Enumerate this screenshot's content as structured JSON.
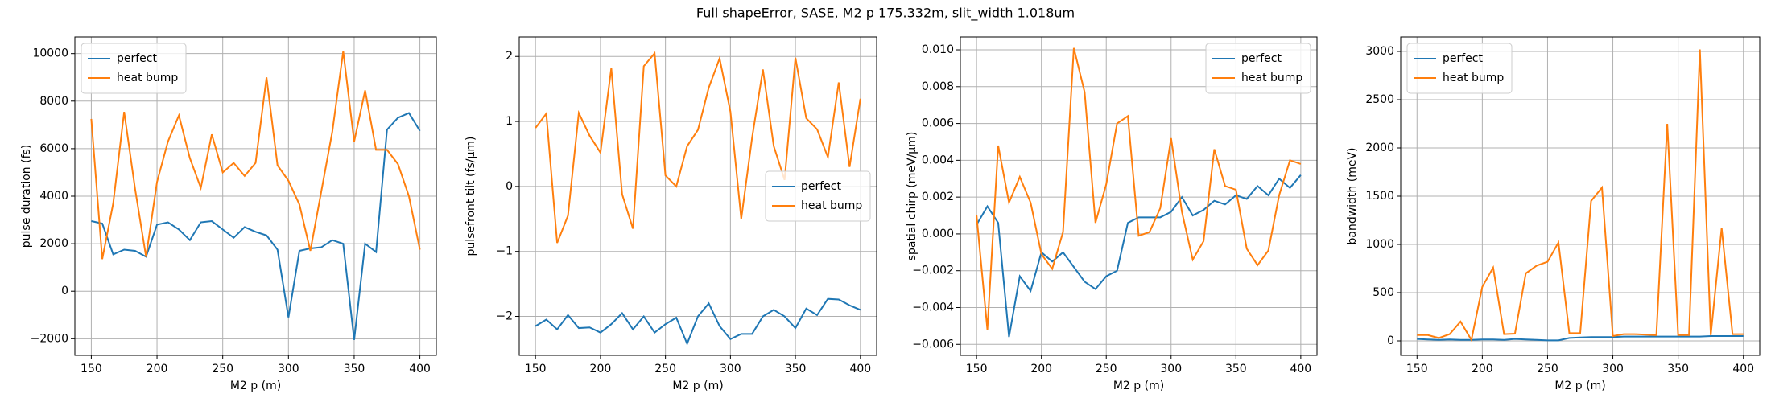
{
  "title": "Full shapeError, SASE, M2 p 175.332m, slit_width 1.018um",
  "chart_data": [
    {
      "type": "line",
      "xlabel": "M2 p (m)",
      "ylabel": "pulse duration (fs)",
      "legend": "upper left",
      "grid": true,
      "x": [
        150,
        158.33,
        166.67,
        175,
        183.33,
        191.67,
        200,
        208.33,
        216.67,
        225,
        233.33,
        241.67,
        250,
        258.33,
        266.67,
        275,
        283.33,
        291.67,
        300,
        308.33,
        316.67,
        325,
        333.33,
        341.67,
        350,
        358.33,
        366.67,
        375,
        383.33,
        391.67,
        400
      ],
      "xlim": [
        137.5,
        412.5
      ],
      "xticks": [
        150,
        200,
        250,
        300,
        350,
        400
      ],
      "ylim": [
        -2700,
        10700
      ],
      "yticks": [
        {
          "value": -2000,
          "label": "−2000"
        },
        0,
        2000,
        4000,
        6000,
        8000,
        10000
      ],
      "series": [
        {
          "name": "perfect",
          "color": "#1f77b4",
          "values": [
            2950,
            2850,
            1550,
            1750,
            1700,
            1450,
            2800,
            2900,
            2600,
            2150,
            2900,
            2950,
            2600,
            2250,
            2700,
            2500,
            2350,
            1750,
            -1100,
            1700,
            1800,
            1850,
            2150,
            2000,
            -2050,
            2000,
            1650,
            6800,
            7300,
            7500,
            6750
          ]
        },
        {
          "name": "heat bump",
          "color": "#ff7f0e",
          "values": [
            7250,
            1350,
            3700,
            7550,
            4300,
            1450,
            4600,
            6300,
            7400,
            5600,
            4350,
            6600,
            5000,
            5400,
            4850,
            5400,
            9000,
            5300,
            4650,
            3650,
            1700,
            4200,
            6700,
            10100,
            6300,
            8450,
            5950,
            5950,
            5350,
            4000,
            1750
          ]
        }
      ]
    },
    {
      "type": "line",
      "xlabel": "M2 p (m)",
      "ylabel": "pulsefront tilt (fs/μm)",
      "legend": "center right",
      "grid": true,
      "x": [
        150,
        158.33,
        166.67,
        175,
        183.33,
        191.67,
        200,
        208.33,
        216.67,
        225,
        233.33,
        241.67,
        250,
        258.33,
        266.67,
        275,
        283.33,
        291.67,
        300,
        308.33,
        316.67,
        325,
        333.33,
        341.67,
        350,
        358.33,
        366.67,
        375,
        383.33,
        391.67,
        400
      ],
      "xlim": [
        137.5,
        412.5
      ],
      "xticks": [
        150,
        200,
        250,
        300,
        350,
        400
      ],
      "ylim": [
        -2.6,
        2.3
      ],
      "yticks": [
        {
          "value": -2,
          "label": "−2"
        },
        {
          "value": -1,
          "label": "−1"
        },
        0,
        1,
        2
      ],
      "series": [
        {
          "name": "perfect",
          "color": "#1f77b4",
          "values": [
            -2.15,
            -2.05,
            -2.2,
            -1.98,
            -2.18,
            -2.17,
            -2.25,
            -2.12,
            -1.95,
            -2.2,
            -2.0,
            -2.25,
            -2.12,
            -2.02,
            -2.42,
            -2.0,
            -1.8,
            -2.15,
            -2.35,
            -2.27,
            -2.27,
            -2.0,
            -1.9,
            -2.0,
            -2.18,
            -1.88,
            -1.98,
            -1.73,
            -1.74,
            -1.83,
            -1.9
          ]
        },
        {
          "name": "heat bump",
          "color": "#ff7f0e",
          "values": [
            0.9,
            1.12,
            -0.87,
            -0.45,
            1.13,
            0.78,
            0.52,
            1.82,
            -0.12,
            -0.65,
            1.85,
            2.05,
            0.17,
            0.0,
            0.62,
            0.87,
            1.52,
            1.97,
            1.15,
            -0.5,
            0.75,
            1.8,
            0.62,
            0.1,
            1.98,
            1.05,
            0.88,
            0.45,
            1.6,
            0.3,
            1.35
          ]
        }
      ]
    },
    {
      "type": "line",
      "xlabel": "M2 p (m)",
      "ylabel": "spatial chirp (meV/μm)",
      "legend": "upper right",
      "grid": true,
      "x": [
        150,
        158.33,
        166.67,
        175,
        183.33,
        191.67,
        200,
        208.33,
        216.67,
        225,
        233.33,
        241.67,
        250,
        258.33,
        266.67,
        275,
        283.33,
        291.67,
        300,
        308.33,
        316.67,
        325,
        333.33,
        341.67,
        350,
        358.33,
        366.67,
        375,
        383.33,
        391.67,
        400
      ],
      "xlim": [
        137.5,
        412.5
      ],
      "xticks": [
        150,
        200,
        250,
        300,
        350,
        400
      ],
      "ylim": [
        -0.0066,
        0.0107
      ],
      "yticks": [
        {
          "value": -0.006,
          "label": "−0.006"
        },
        {
          "value": -0.004,
          "label": "−0.004"
        },
        {
          "value": -0.002,
          "label": "−0.002"
        },
        {
          "value": 0,
          "label": "0.000"
        },
        {
          "value": 0.002,
          "label": "0.002"
        },
        {
          "value": 0.004,
          "label": "0.004"
        },
        {
          "value": 0.006,
          "label": "0.006"
        },
        {
          "value": 0.008,
          "label": "0.008"
        },
        {
          "value": 0.01,
          "label": "0.010"
        }
      ],
      "series": [
        {
          "name": "perfect",
          "color": "#1f77b4",
          "values": [
            0.0005,
            0.0015,
            0.0006,
            -0.0056,
            -0.0023,
            -0.0031,
            -0.001,
            -0.0015,
            -0.001,
            -0.0018,
            -0.0026,
            -0.003,
            -0.0023,
            -0.002,
            0.0006,
            0.0009,
            0.0009,
            0.0009,
            0.0012,
            0.002,
            0.001,
            0.0013,
            0.0018,
            0.0016,
            0.0021,
            0.0019,
            0.0026,
            0.0021,
            0.003,
            0.0025,
            0.0032
          ]
        },
        {
          "name": "heat bump",
          "color": "#ff7f0e",
          "values": [
            0.001,
            -0.0052,
            0.0048,
            0.0017,
            0.0031,
            0.0017,
            -0.0011,
            -0.0019,
            0.0001,
            0.0101,
            0.0077,
            0.0006,
            0.0027,
            0.006,
            0.0064,
            -0.0001,
            0.0001,
            0.0014,
            0.0052,
            0.0012,
            -0.0014,
            -0.0004,
            0.0046,
            0.0026,
            0.0024,
            -0.0008,
            -0.0017,
            -0.0009,
            0.0021,
            0.004,
            0.0038
          ]
        }
      ]
    },
    {
      "type": "line",
      "xlabel": "M2 p (m)",
      "ylabel": "bandwidth (meV)",
      "legend": "upper left",
      "grid": true,
      "x": [
        150,
        158.33,
        166.67,
        175,
        183.33,
        191.67,
        200,
        208.33,
        216.67,
        225,
        233.33,
        241.67,
        250,
        258.33,
        266.67,
        275,
        283.33,
        291.67,
        300,
        308.33,
        316.67,
        325,
        333.33,
        341.67,
        350,
        358.33,
        366.67,
        375,
        383.33,
        391.67,
        400
      ],
      "xlim": [
        137.5,
        412.5
      ],
      "xticks": [
        150,
        200,
        250,
        300,
        350,
        400
      ],
      "ylim": [
        -150,
        3150
      ],
      "yticks": [
        0,
        500,
        1000,
        1500,
        2000,
        2500,
        3000
      ],
      "series": [
        {
          "name": "perfect",
          "color": "#1f77b4",
          "values": [
            20,
            15,
            10,
            15,
            10,
            10,
            15,
            15,
            10,
            20,
            15,
            10,
            5,
            5,
            30,
            35,
            40,
            40,
            40,
            45,
            45,
            45,
            45,
            45,
            45,
            45,
            45,
            50,
            50,
            50,
            50
          ]
        },
        {
          "name": "heat bump",
          "color": "#ff7f0e",
          "values": [
            60,
            60,
            30,
            70,
            200,
            10,
            560,
            760,
            70,
            75,
            700,
            780,
            820,
            1020,
            80,
            80,
            1450,
            1590,
            50,
            70,
            70,
            65,
            60,
            2250,
            60,
            60,
            3020,
            60,
            1170,
            70,
            70
          ]
        }
      ]
    }
  ]
}
